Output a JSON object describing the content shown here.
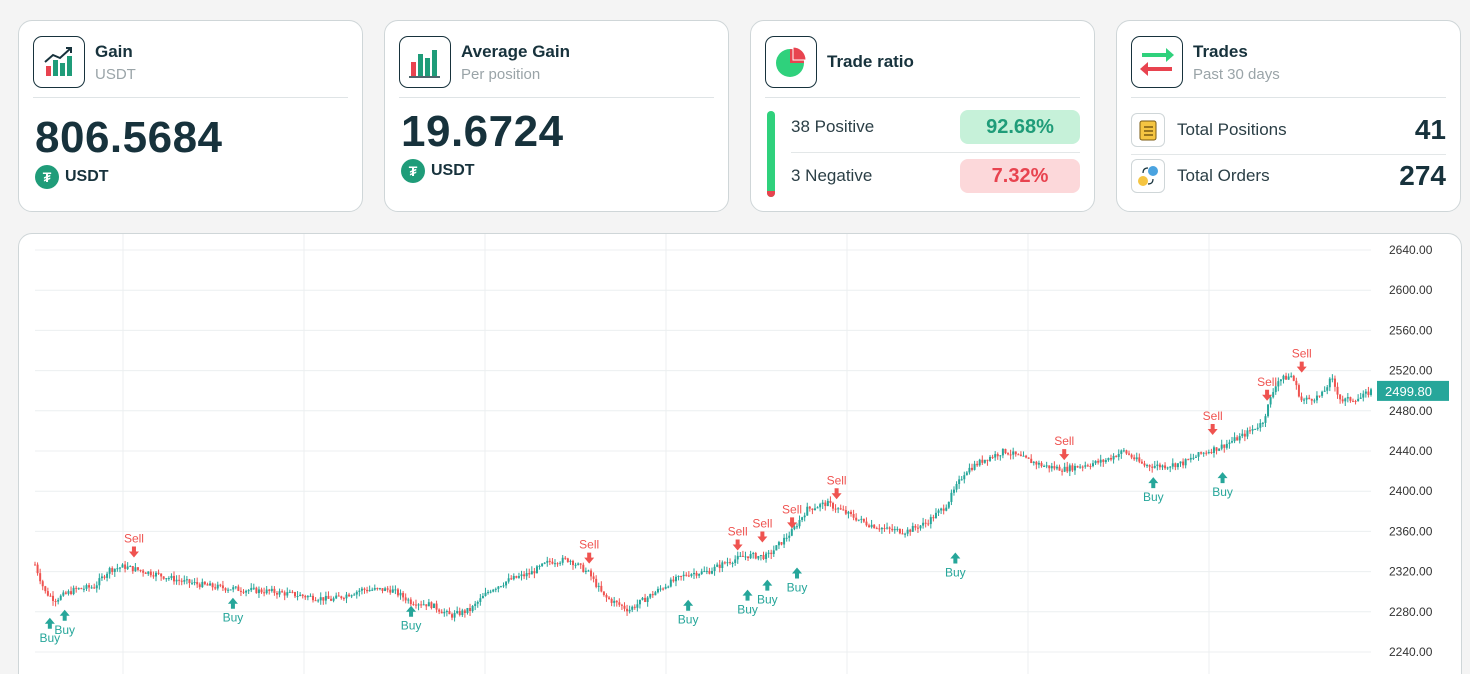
{
  "cards": {
    "gain": {
      "title": "Gain",
      "subtitle": "USDT",
      "value": "806.5684",
      "unit": "USDT",
      "icon": "bar-chart-up-icon"
    },
    "average_gain": {
      "title": "Average Gain",
      "subtitle": "Per position",
      "value": "19.6724",
      "unit": "USDT",
      "icon": "bar-chart-icon"
    },
    "trade_ratio": {
      "title": "Trade ratio",
      "icon": "pie-chart-icon",
      "positive_label": "38 Positive",
      "positive_pct": "92.68%",
      "negative_label": "3 Negative",
      "negative_pct": "7.32%",
      "positive_fraction": 0.9268
    },
    "trades": {
      "title": "Trades",
      "subtitle": "Past 30 days",
      "icon": "swap-arrows-icon",
      "rows": [
        {
          "label": "Total Positions",
          "value": "41",
          "icon": "clipboard-icon"
        },
        {
          "label": "Total Orders",
          "value": "274",
          "icon": "orders-flow-icon"
        }
      ]
    }
  },
  "colors": {
    "up": "#26a69a",
    "down": "#ef5350",
    "buy": "#26a69a",
    "sell": "#ef5350",
    "accent": "#1f9c79",
    "dark": "#17323c"
  },
  "chart_data": {
    "type": "candlestick",
    "y_ticks": [
      "2640.00",
      "2600.00",
      "2560.00",
      "2520.00",
      "2480.00",
      "2440.00",
      "2400.00",
      "2360.00",
      "2320.00",
      "2280.00",
      "2240.00"
    ],
    "ylim": [
      2240,
      2640
    ],
    "grid": true,
    "last_price_label": "2499.80",
    "last_price": 2499.8,
    "price_path": [
      [
        0,
        2327
      ],
      [
        0.01,
        2300
      ],
      [
        0.02,
        2292
      ],
      [
        0.04,
        2302
      ],
      [
        0.06,
        2305
      ],
      [
        0.075,
        2322
      ],
      [
        0.09,
        2325
      ],
      [
        0.12,
        2318
      ],
      [
        0.15,
        2310
      ],
      [
        0.18,
        2305
      ],
      [
        0.21,
        2302
      ],
      [
        0.24,
        2300
      ],
      [
        0.27,
        2296
      ],
      [
        0.3,
        2292
      ],
      [
        0.33,
        2302
      ],
      [
        0.36,
        2302
      ],
      [
        0.38,
        2290
      ],
      [
        0.4,
        2287
      ],
      [
        0.42,
        2276
      ],
      [
        0.44,
        2282
      ],
      [
        0.46,
        2302
      ],
      [
        0.48,
        2312
      ],
      [
        0.5,
        2318
      ],
      [
        0.52,
        2330
      ],
      [
        0.54,
        2332
      ],
      [
        0.56,
        2318
      ],
      [
        0.575,
        2295
      ],
      [
        0.6,
        2282
      ],
      [
        0.62,
        2295
      ],
      [
        0.64,
        2308
      ],
      [
        0.66,
        2318
      ],
      [
        0.68,
        2320
      ],
      [
        0.7,
        2330
      ],
      [
        0.72,
        2336
      ],
      [
        0.74,
        2335
      ],
      [
        0.75,
        2345
      ],
      [
        0.765,
        2360
      ],
      [
        0.78,
        2382
      ],
      [
        0.8,
        2388
      ],
      [
        0.82,
        2378
      ],
      [
        0.84,
        2368
      ],
      [
        0.86,
        2362
      ],
      [
        0.88,
        2360
      ],
      [
        0.9,
        2368
      ],
      [
        0.92,
        2385
      ],
      [
        0.94,
        2420
      ],
      [
        0.96,
        2432
      ],
      [
        0.98,
        2440
      ],
      [
        1.0,
        2432
      ],
      [
        1.02,
        2425
      ],
      [
        1.04,
        2422
      ],
      [
        1.06,
        2426
      ],
      [
        1.08,
        2430
      ],
      [
        1.1,
        2440
      ],
      [
        1.12,
        2426
      ],
      [
        1.14,
        2425
      ],
      [
        1.16,
        2428
      ],
      [
        1.18,
        2438
      ],
      [
        1.2,
        2445
      ],
      [
        1.22,
        2455
      ],
      [
        1.24,
        2468
      ],
      [
        1.255,
        2510
      ],
      [
        1.27,
        2515
      ],
      [
        1.28,
        2490
      ],
      [
        1.3,
        2495
      ],
      [
        1.31,
        2512
      ],
      [
        1.32,
        2490
      ],
      [
        1.34,
        2493
      ],
      [
        1.35,
        2499.8
      ]
    ],
    "markers": [
      {
        "type": "buy",
        "label": "Buy",
        "x": 0.015,
        "price": 2280
      },
      {
        "type": "buy",
        "label": "Buy",
        "x": 0.03,
        "price": 2288
      },
      {
        "type": "sell",
        "label": "Sell",
        "x": 0.1,
        "price": 2328
      },
      {
        "type": "buy",
        "label": "Buy",
        "x": 0.2,
        "price": 2300
      },
      {
        "type": "buy",
        "label": "Buy",
        "x": 0.38,
        "price": 2292
      },
      {
        "type": "sell",
        "label": "Sell",
        "x": 0.56,
        "price": 2322
      },
      {
        "type": "buy",
        "label": "Buy",
        "x": 0.66,
        "price": 2298
      },
      {
        "type": "sell",
        "label": "Sell",
        "x": 0.71,
        "price": 2335
      },
      {
        "type": "buy",
        "label": "Buy",
        "x": 0.72,
        "price": 2308
      },
      {
        "type": "sell",
        "label": "Sell",
        "x": 0.735,
        "price": 2343
      },
      {
        "type": "buy",
        "label": "Buy",
        "x": 0.74,
        "price": 2318
      },
      {
        "type": "sell",
        "label": "Sell",
        "x": 0.765,
        "price": 2357
      },
      {
        "type": "buy",
        "label": "Buy",
        "x": 0.77,
        "price": 2330
      },
      {
        "type": "sell",
        "label": "Sell",
        "x": 0.81,
        "price": 2386
      },
      {
        "type": "buy",
        "label": "Buy",
        "x": 0.93,
        "price": 2345
      },
      {
        "type": "sell",
        "label": "Sell",
        "x": 1.04,
        "price": 2425
      },
      {
        "type": "buy",
        "label": "Buy",
        "x": 1.13,
        "price": 2420
      },
      {
        "type": "buy",
        "label": "Buy",
        "x": 1.2,
        "price": 2425
      },
      {
        "type": "sell",
        "label": "Sell",
        "x": 1.19,
        "price": 2450
      },
      {
        "type": "sell",
        "label": "Sell",
        "x": 1.245,
        "price": 2484
      },
      {
        "type": "sell",
        "label": "Sell",
        "x": 1.28,
        "price": 2512
      }
    ]
  }
}
